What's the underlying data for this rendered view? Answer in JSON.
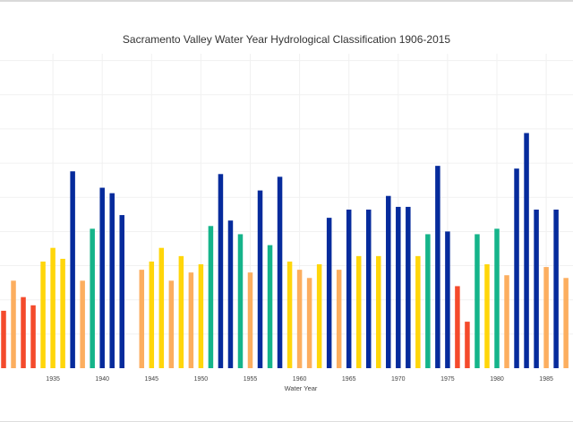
{
  "chart_data": {
    "type": "bar",
    "title": "Sacramento Valley Water Year Hydrological Classification 1906-2015",
    "xlabel": "Water Year",
    "ylabel": "",
    "x_range": [
      1930,
      1988
    ],
    "ylim": [
      0,
      11.5
    ],
    "x_ticks": [
      1935,
      1940,
      1945,
      1950,
      1955,
      1960,
      1965,
      1970,
      1975,
      1980,
      1985
    ],
    "x_tick_labels": [
      "1935",
      "1940",
      "1945",
      "1950",
      "1955",
      "1960",
      "1965",
      "1970",
      "1975",
      "1980",
      "1985"
    ],
    "grid": true,
    "colors": {
      "critical": "#f44a2c",
      "dry": "#fcae5f",
      "below_normal": "#ffd60a",
      "above_normal": "#15b48a",
      "wet": "#062b9c"
    },
    "bars": [
      {
        "year": 1930,
        "value": 2.1,
        "class": "critical"
      },
      {
        "year": 1931,
        "value": 3.2,
        "class": "dry"
      },
      {
        "year": 1932,
        "value": 2.6,
        "class": "critical"
      },
      {
        "year": 1933,
        "value": 2.3,
        "class": "critical"
      },
      {
        "year": 1934,
        "value": 3.9,
        "class": "below_normal"
      },
      {
        "year": 1935,
        "value": 4.4,
        "class": "below_normal"
      },
      {
        "year": 1936,
        "value": 4.0,
        "class": "below_normal"
      },
      {
        "year": 1937,
        "value": 7.2,
        "class": "wet"
      },
      {
        "year": 1938,
        "value": 3.2,
        "class": "dry"
      },
      {
        "year": 1939,
        "value": 5.1,
        "class": "above_normal"
      },
      {
        "year": 1940,
        "value": 6.6,
        "class": "wet"
      },
      {
        "year": 1941,
        "value": 6.4,
        "class": "wet"
      },
      {
        "year": 1942,
        "value": 5.6,
        "class": "wet"
      },
      {
        "year": 1944,
        "value": 3.6,
        "class": "dry"
      },
      {
        "year": 1945,
        "value": 3.9,
        "class": "below_normal"
      },
      {
        "year": 1946,
        "value": 4.4,
        "class": "below_normal"
      },
      {
        "year": 1947,
        "value": 3.2,
        "class": "dry"
      },
      {
        "year": 1948,
        "value": 4.1,
        "class": "below_normal"
      },
      {
        "year": 1949,
        "value": 3.5,
        "class": "dry"
      },
      {
        "year": 1950,
        "value": 3.8,
        "class": "below_normal"
      },
      {
        "year": 1951,
        "value": 5.2,
        "class": "above_normal"
      },
      {
        "year": 1952,
        "value": 7.1,
        "class": "wet"
      },
      {
        "year": 1953,
        "value": 5.4,
        "class": "wet"
      },
      {
        "year": 1954,
        "value": 4.9,
        "class": "above_normal"
      },
      {
        "year": 1955,
        "value": 3.5,
        "class": "dry"
      },
      {
        "year": 1956,
        "value": 6.5,
        "class": "wet"
      },
      {
        "year": 1957,
        "value": 4.5,
        "class": "above_normal"
      },
      {
        "year": 1958,
        "value": 7.0,
        "class": "wet"
      },
      {
        "year": 1959,
        "value": 3.9,
        "class": "below_normal"
      },
      {
        "year": 1960,
        "value": 3.6,
        "class": "dry"
      },
      {
        "year": 1961,
        "value": 3.3,
        "class": "dry"
      },
      {
        "year": 1962,
        "value": 3.8,
        "class": "below_normal"
      },
      {
        "year": 1963,
        "value": 5.5,
        "class": "wet"
      },
      {
        "year": 1964,
        "value": 3.6,
        "class": "dry"
      },
      {
        "year": 1965,
        "value": 5.8,
        "class": "wet"
      },
      {
        "year": 1966,
        "value": 4.1,
        "class": "below_normal"
      },
      {
        "year": 1967,
        "value": 5.8,
        "class": "wet"
      },
      {
        "year": 1968,
        "value": 4.1,
        "class": "below_normal"
      },
      {
        "year": 1969,
        "value": 6.3,
        "class": "wet"
      },
      {
        "year": 1970,
        "value": 5.9,
        "class": "wet"
      },
      {
        "year": 1971,
        "value": 5.9,
        "class": "wet"
      },
      {
        "year": 1972,
        "value": 4.1,
        "class": "below_normal"
      },
      {
        "year": 1973,
        "value": 4.9,
        "class": "above_normal"
      },
      {
        "year": 1974,
        "value": 7.4,
        "class": "wet"
      },
      {
        "year": 1975,
        "value": 5.0,
        "class": "wet"
      },
      {
        "year": 1976,
        "value": 3.0,
        "class": "critical"
      },
      {
        "year": 1977,
        "value": 1.7,
        "class": "critical"
      },
      {
        "year": 1978,
        "value": 4.9,
        "class": "above_normal"
      },
      {
        "year": 1979,
        "value": 3.8,
        "class": "below_normal"
      },
      {
        "year": 1980,
        "value": 5.1,
        "class": "above_normal"
      },
      {
        "year": 1981,
        "value": 3.4,
        "class": "dry"
      },
      {
        "year": 1982,
        "value": 7.3,
        "class": "wet"
      },
      {
        "year": 1983,
        "value": 8.6,
        "class": "wet"
      },
      {
        "year": 1984,
        "value": 5.8,
        "class": "wet"
      },
      {
        "year": 1985,
        "value": 3.7,
        "class": "dry"
      },
      {
        "year": 1986,
        "value": 5.8,
        "class": "wet"
      },
      {
        "year": 1987,
        "value": 3.3,
        "class": "dry"
      }
    ]
  }
}
